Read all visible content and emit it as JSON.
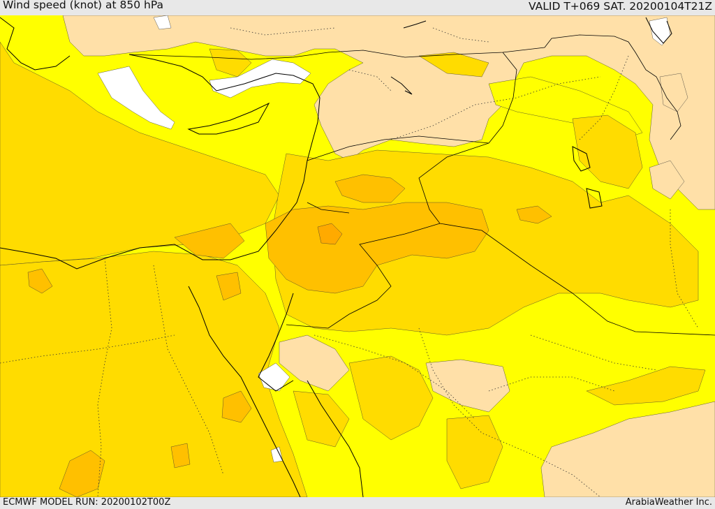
{
  "header": {
    "title": "Wind speed (knot) at 850 hPa",
    "valid": "VALID T+069 SAT. 20200104T21Z"
  },
  "footer": {
    "model_run": "ECMWF MODEL RUN: 20200102T00Z",
    "credit": "ArabiaWeather Inc."
  },
  "palette": {
    "land_low": "#ffe0a8",
    "bright_yellow": "#ffff00",
    "gold": "#ffdc00",
    "amber": "#ffc000",
    "orange": "#ffaa00",
    "water_calm": "#ffffff",
    "border": "#000000"
  }
}
